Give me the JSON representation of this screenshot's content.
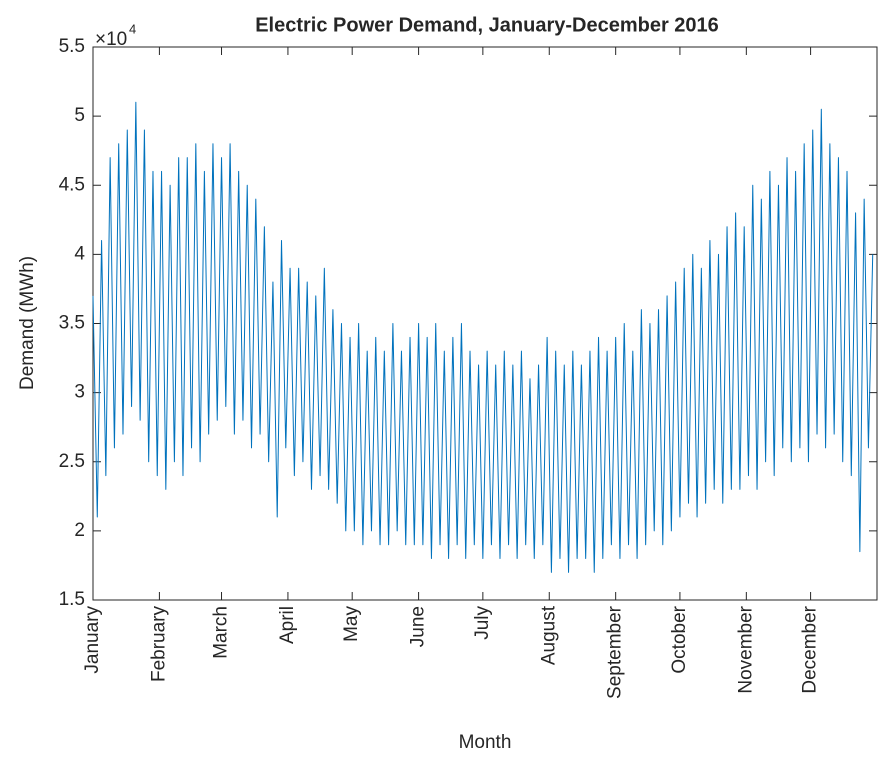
{
  "chart_data": {
    "type": "line",
    "title": "Electric Power Demand, January-December 2016",
    "x_label": "Month",
    "y_label": "Demand (MWh)",
    "y_multiplier": {
      "base": "×10",
      "exponent": "4"
    },
    "xlim": [
      0,
      366
    ],
    "xticks": [
      {
        "value": 0,
        "label": "January"
      },
      {
        "value": 31,
        "label": "February"
      },
      {
        "value": 60,
        "label": "March"
      },
      {
        "value": 91,
        "label": "April"
      },
      {
        "value": 121,
        "label": "May"
      },
      {
        "value": 152,
        "label": "June"
      },
      {
        "value": 182,
        "label": "July"
      },
      {
        "value": 213,
        "label": "August"
      },
      {
        "value": 244,
        "label": "September"
      },
      {
        "value": 274,
        "label": "October"
      },
      {
        "value": 305,
        "label": "November"
      },
      {
        "value": 335,
        "label": "December"
      }
    ],
    "ylim": [
      1.5,
      5.5
    ],
    "yticks": [
      1.5,
      2,
      2.5,
      3,
      3.5,
      4,
      4.5,
      5,
      5.5
    ],
    "grid": false,
    "x": [
      0,
      2,
      4,
      6,
      8,
      10,
      12,
      14,
      16,
      18,
      20,
      22,
      24,
      26,
      28,
      30,
      32,
      34,
      36,
      38,
      40,
      42,
      44,
      46,
      48,
      50,
      52,
      54,
      56,
      58,
      60,
      62,
      64,
      66,
      68,
      70,
      72,
      74,
      76,
      78,
      80,
      82,
      84,
      86,
      88,
      90,
      92,
      94,
      96,
      98,
      100,
      102,
      104,
      106,
      108,
      110,
      112,
      114,
      116,
      118,
      120,
      122,
      124,
      126,
      128,
      130,
      132,
      134,
      136,
      138,
      140,
      142,
      144,
      146,
      148,
      150,
      152,
      154,
      156,
      158,
      160,
      162,
      164,
      166,
      168,
      170,
      172,
      174,
      176,
      178,
      180,
      182,
      184,
      186,
      188,
      190,
      192,
      194,
      196,
      198,
      200,
      202,
      204,
      206,
      208,
      210,
      212,
      214,
      216,
      218,
      220,
      222,
      224,
      226,
      228,
      230,
      232,
      234,
      236,
      238,
      240,
      242,
      244,
      246,
      248,
      250,
      252,
      254,
      256,
      258,
      260,
      262,
      264,
      266,
      268,
      270,
      272,
      274,
      276,
      278,
      280,
      282,
      284,
      286,
      288,
      290,
      292,
      294,
      296,
      298,
      300,
      302,
      304,
      306,
      308,
      310,
      312,
      314,
      316,
      318,
      320,
      322,
      324,
      326,
      328,
      330,
      332,
      334,
      336,
      338,
      340,
      342,
      344,
      346,
      348,
      350,
      352,
      354,
      356,
      358,
      360,
      362,
      364
    ],
    "series": [
      {
        "color": "#0072bd",
        "values": [
          3.7,
          2.1,
          4.1,
          2.4,
          4.7,
          2.6,
          4.8,
          2.7,
          4.9,
          2.9,
          5.1,
          2.8,
          4.9,
          2.5,
          4.6,
          2.4,
          4.6,
          2.3,
          4.5,
          2.5,
          4.7,
          2.4,
          4.7,
          2.6,
          4.8,
          2.5,
          4.6,
          2.7,
          4.8,
          2.8,
          4.7,
          2.9,
          4.8,
          2.7,
          4.6,
          2.8,
          4.5,
          2.6,
          4.4,
          2.7,
          4.2,
          2.5,
          3.8,
          2.1,
          4.1,
          2.6,
          3.9,
          2.4,
          3.9,
          2.5,
          3.8,
          2.3,
          3.7,
          2.4,
          3.9,
          2.3,
          3.6,
          2.2,
          3.5,
          2.0,
          3.4,
          2.0,
          3.5,
          1.9,
          3.3,
          2.0,
          3.4,
          1.9,
          3.3,
          1.9,
          3.5,
          2.0,
          3.3,
          1.9,
          3.4,
          1.9,
          3.5,
          1.9,
          3.4,
          1.8,
          3.5,
          1.9,
          3.3,
          1.8,
          3.4,
          1.9,
          3.5,
          1.8,
          3.3,
          1.9,
          3.2,
          1.8,
          3.3,
          1.9,
          3.2,
          1.8,
          3.3,
          1.9,
          3.2,
          1.8,
          3.3,
          1.9,
          3.1,
          1.8,
          3.2,
          1.9,
          3.4,
          1.7,
          3.3,
          1.8,
          3.2,
          1.7,
          3.3,
          1.8,
          3.2,
          1.8,
          3.3,
          1.7,
          3.4,
          1.8,
          3.3,
          1.9,
          3.4,
          1.8,
          3.5,
          1.9,
          3.3,
          1.8,
          3.6,
          1.9,
          3.5,
          2.0,
          3.6,
          1.9,
          3.7,
          2.0,
          3.8,
          2.1,
          3.9,
          2.2,
          4.0,
          2.1,
          3.9,
          2.2,
          4.1,
          2.3,
          4.0,
          2.2,
          4.2,
          2.3,
          4.3,
          2.3,
          4.2,
          2.4,
          4.5,
          2.3,
          4.4,
          2.5,
          4.6,
          2.4,
          4.5,
          2.6,
          4.7,
          2.5,
          4.6,
          2.6,
          4.8,
          2.5,
          4.9,
          2.7,
          5.05,
          2.6,
          4.8,
          2.7,
          4.7,
          2.5,
          4.6,
          2.4,
          4.3,
          1.85,
          4.4,
          2.6,
          4.0
        ]
      }
    ]
  }
}
